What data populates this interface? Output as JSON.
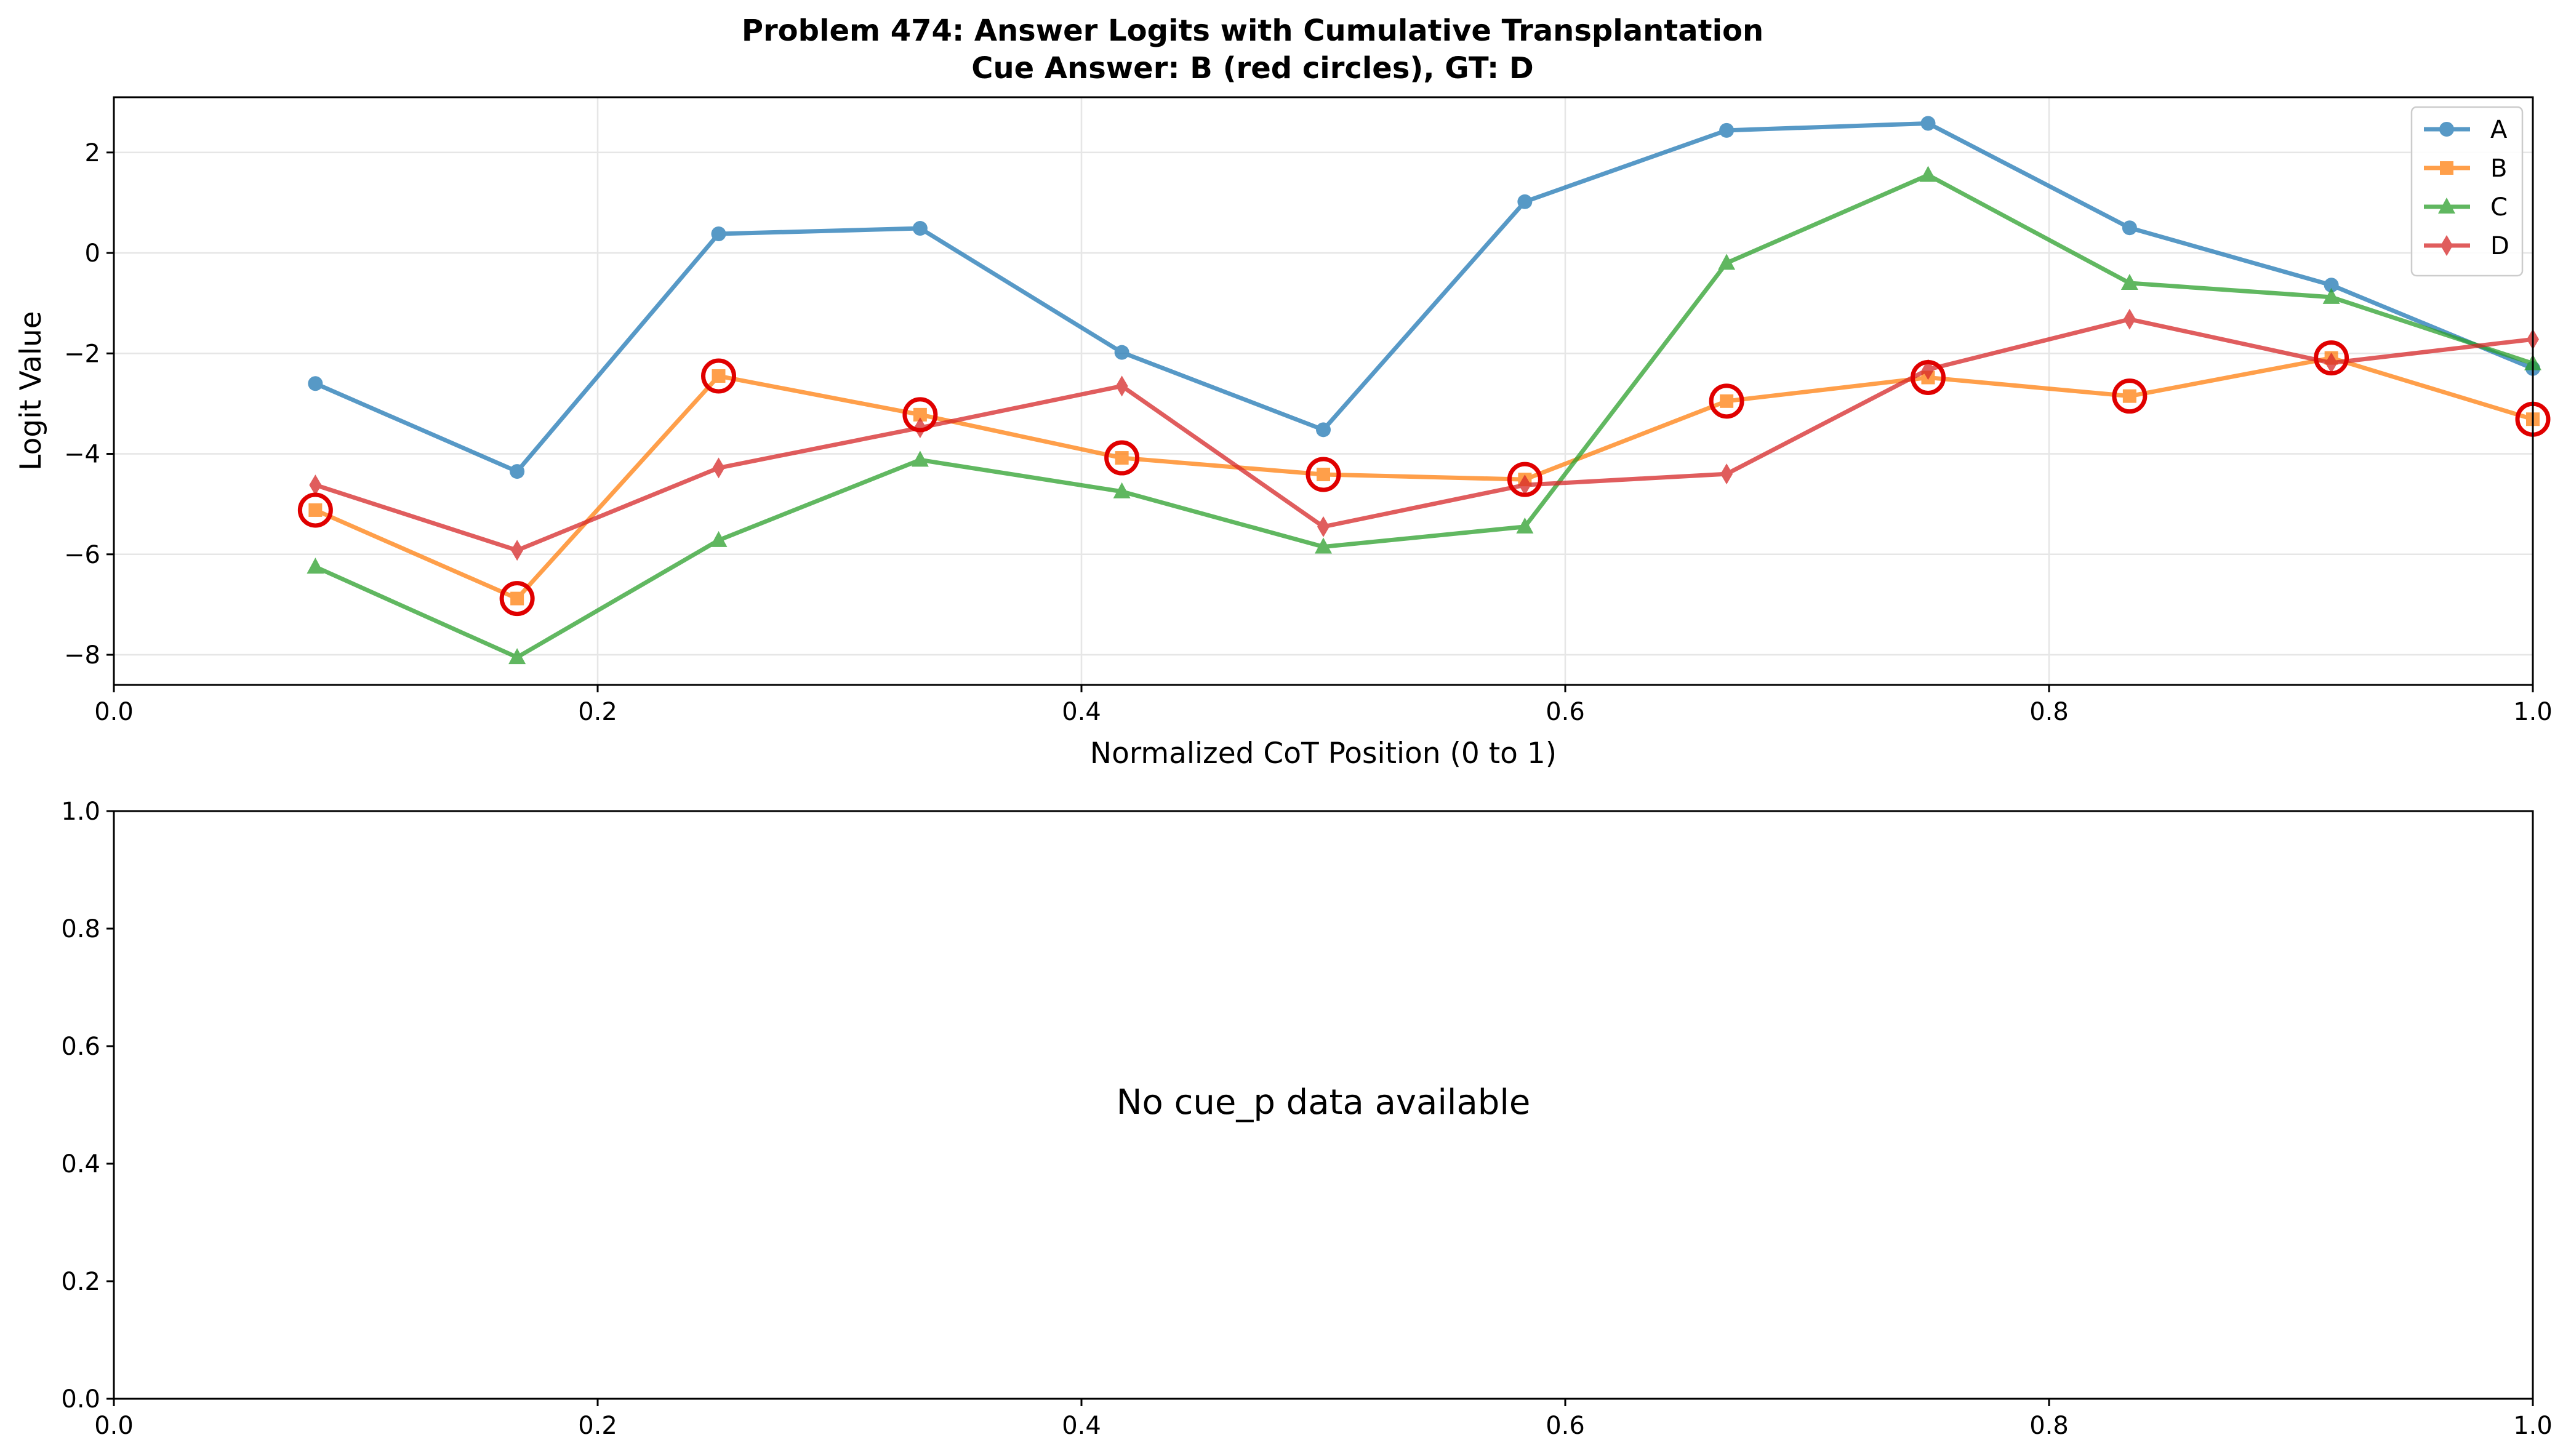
{
  "chart_data": [
    {
      "type": "line",
      "title": "Problem 474: Answer Logits with Cumulative Transplantation",
      "subtitle": "Cue Answer: B (red circles), GT: D",
      "xlabel": "Normalized CoT Position (0 to 1)",
      "ylabel": "Logit Value",
      "xlim": [
        0.0,
        1.0
      ],
      "ylim": [
        -8.6,
        3.1
      ],
      "xticks": [
        0.0,
        0.2,
        0.4,
        0.6,
        0.8,
        1.0
      ],
      "xtick_labels": [
        "0.0",
        "0.2",
        "0.4",
        "0.6",
        "0.8",
        "1.0"
      ],
      "yticks": [
        -8,
        -6,
        -4,
        -2,
        0,
        2
      ],
      "ytick_labels": [
        "−8",
        "−6",
        "−4",
        "−2",
        "0",
        "2"
      ],
      "grid": true,
      "legend_position": "top-right",
      "x": [
        0.0833,
        0.1667,
        0.25,
        0.3333,
        0.4167,
        0.5,
        0.5833,
        0.6667,
        0.75,
        0.8333,
        0.9167,
        1.0
      ],
      "series": [
        {
          "name": "A",
          "color": "#1f77b4",
          "marker": "circle",
          "values": [
            -2.6,
            -4.35,
            0.38,
            0.49,
            -1.98,
            -3.52,
            1.02,
            2.44,
            2.58,
            0.5,
            -0.64,
            -2.3
          ]
        },
        {
          "name": "B",
          "color": "#ff7f0e",
          "marker": "square",
          "values": [
            -5.12,
            -6.88,
            -2.45,
            -3.22,
            -4.08,
            -4.41,
            -4.51,
            -2.95,
            -2.48,
            -2.85,
            -2.09,
            -3.31
          ]
        },
        {
          "name": "C",
          "color": "#2ca02c",
          "marker": "triangle",
          "values": [
            -6.25,
            -8.05,
            -5.72,
            -4.12,
            -4.75,
            -5.85,
            -5.45,
            -0.2,
            1.55,
            -0.6,
            -0.88,
            -2.2
          ]
        },
        {
          "name": "D",
          "color": "#d62728",
          "marker": "diamond",
          "values": [
            -4.62,
            -5.92,
            -4.28,
            -3.48,
            -2.65,
            -5.45,
            -4.62,
            -4.4,
            -2.32,
            -1.32,
            -2.19,
            -1.72
          ]
        }
      ],
      "cue_series": "B",
      "cue_marker_color": "#e00000"
    },
    {
      "type": "line",
      "xlim": [
        0.0,
        1.0
      ],
      "ylim": [
        0.0,
        1.0
      ],
      "xticks": [
        0.0,
        0.2,
        0.4,
        0.6,
        0.8,
        1.0
      ],
      "xtick_labels": [
        "0.0",
        "0.2",
        "0.4",
        "0.6",
        "0.8",
        "1.0"
      ],
      "yticks": [
        0.0,
        0.2,
        0.4,
        0.6,
        0.8,
        1.0
      ],
      "ytick_labels": [
        "0.0",
        "0.2",
        "0.4",
        "0.6",
        "0.8",
        "1.0"
      ],
      "message": "No cue_p data available"
    }
  ]
}
